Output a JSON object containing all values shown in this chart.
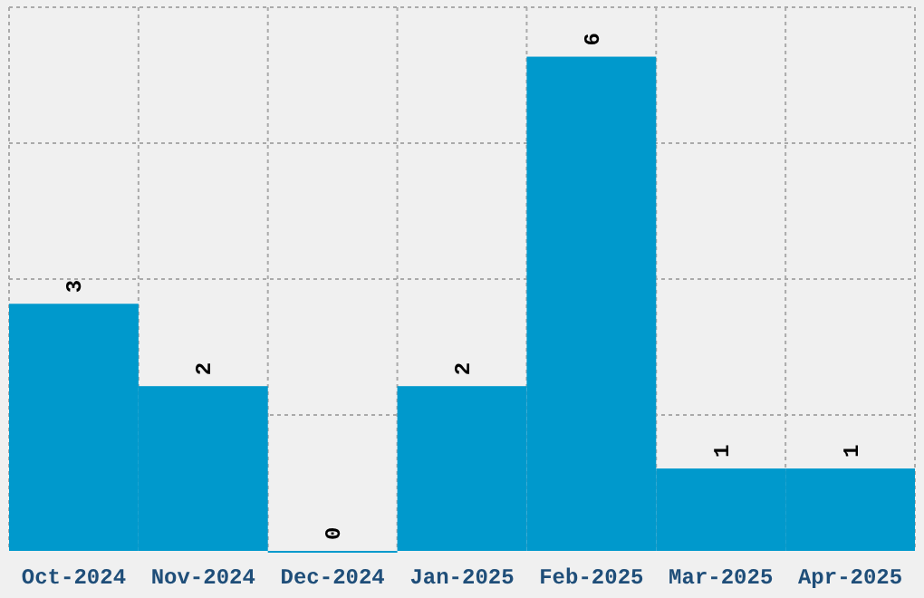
{
  "chart_data": {
    "type": "bar",
    "categories": [
      "Oct-2024",
      "Nov-2024",
      "Dec-2024",
      "Jan-2025",
      "Feb-2025",
      "Mar-2025",
      "Apr-2025"
    ],
    "values": [
      3,
      2,
      0,
      2,
      6,
      1,
      1
    ],
    "color": "#0099cc",
    "data_labels": true,
    "ylim": [
      0,
      6.6
    ],
    "yticks": [
      {
        "value": 1.65,
        "label": null
      },
      {
        "value": 3.3,
        "label": null
      },
      {
        "value": 4.95,
        "label": null
      },
      {
        "value": 6.6,
        "label": null
      }
    ],
    "grid": true,
    "tick_labels": "x"
  }
}
